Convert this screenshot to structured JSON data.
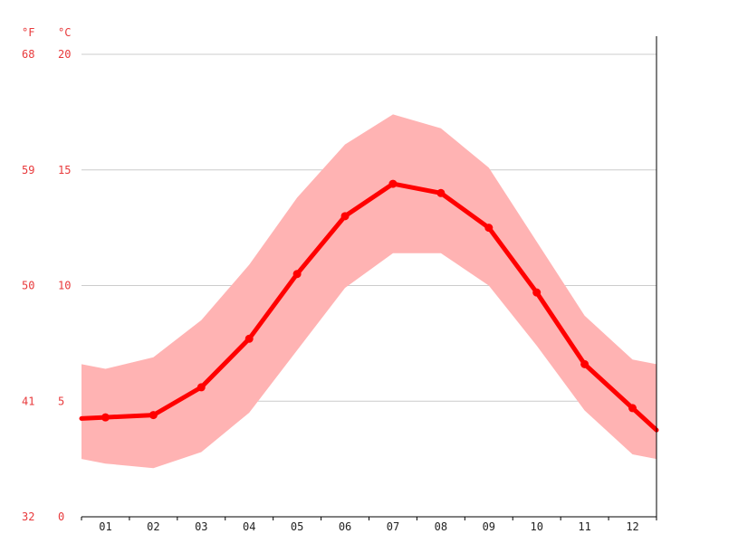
{
  "chart_data": {
    "type": "line",
    "title": "",
    "xlabel": "",
    "ylabel": "",
    "unit_labels": {
      "fahrenheit": "°F",
      "celsius": "°C"
    },
    "categories": [
      "01",
      "02",
      "03",
      "04",
      "05",
      "06",
      "07",
      "08",
      "09",
      "10",
      "11",
      "12"
    ],
    "ylim": [
      0,
      20
    ],
    "y_ticks_celsius": [
      "0",
      "5",
      "10",
      "15",
      "20"
    ],
    "y_ticks_fahrenheit": [
      "32",
      "41",
      "50",
      "59",
      "68"
    ],
    "grid": true,
    "series": [
      {
        "values": [
          4.3,
          4.4,
          5.6,
          7.7,
          10.5,
          13.0,
          14.4,
          14.0,
          12.5,
          9.7,
          6.6,
          4.7
        ]
      }
    ],
    "range_band": {
      "min": [
        2.3,
        2.1,
        2.8,
        4.5,
        7.2,
        9.9,
        11.4,
        11.4,
        10.0,
        7.4,
        4.6,
        2.7
      ],
      "max": [
        6.4,
        6.9,
        8.5,
        10.9,
        13.8,
        16.1,
        17.4,
        16.8,
        15.1,
        11.9,
        8.7,
        6.8
      ],
      "edge_start": [
        2.5,
        6.6
      ],
      "edge_end": [
        2.5,
        6.6
      ]
    },
    "colors": {
      "line": "#ff0000",
      "band": "#ffb3b3",
      "grid": "#cccccc",
      "axis": "#000000",
      "y_labels": "#e8393b",
      "x_labels": "#222222"
    }
  }
}
